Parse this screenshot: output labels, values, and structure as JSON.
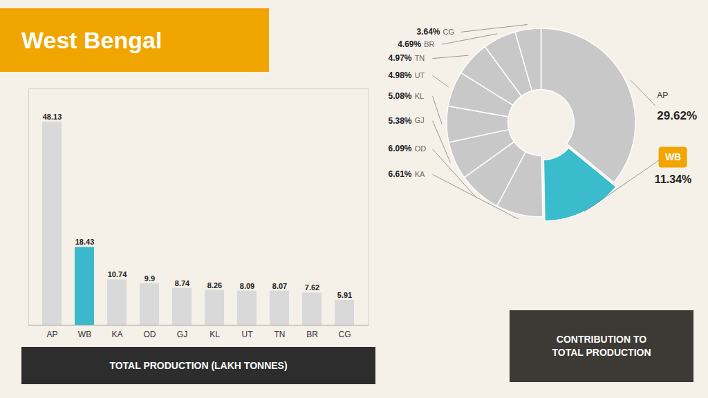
{
  "chart_data": [
    {
      "type": "bar",
      "title": "West Bengal",
      "categories": [
        "AP",
        "WB",
        "KA",
        "OD",
        "GJ",
        "KL",
        "UT",
        "TN",
        "BR",
        "CG"
      ],
      "values": [
        48.13,
        18.43,
        10.74,
        9.9,
        8.74,
        8.26,
        8.09,
        8.07,
        7.62,
        5.91
      ],
      "colors": [
        "#d9d9d9",
        "#3bb8cc",
        "#d9d9d9",
        "#d9d9d9",
        "#d9d9d9",
        "#d9d9d9",
        "#d9d9d9",
        "#d9d9d9",
        "#d9d9d9",
        "#d9d9d9"
      ],
      "xlabel": "TOTAL PRODUCTION (LAKH TONNES)",
      "ylim": [
        0,
        56
      ],
      "data_labels": true,
      "tick_labels": "x"
    },
    {
      "type": "pie",
      "title": "CONTRIBUTION TO\nTOTAL PRODUCTION",
      "categories": [
        "AP",
        "WB",
        "KA",
        "OD",
        "GJ",
        "KL",
        "UT",
        "TN",
        "BR",
        "CG"
      ],
      "values": [
        29.62,
        11.34,
        6.61,
        6.09,
        5.38,
        5.08,
        4.98,
        4.97,
        4.69,
        3.64
      ],
      "value_labels": [
        "29.62%",
        "11.34%",
        "6.61%",
        "6.09%",
        "5.38%",
        "5.08%",
        "4.98%",
        "4.97%",
        "4.69%",
        "3.64%"
      ],
      "colors": [
        "#c8c8c8",
        "#3bbccc",
        "#c8c8c8",
        "#c8c8c8",
        "#c8c8c8",
        "#c8c8c8",
        "#c8c8c8",
        "#c8c8c8",
        "#c8c8c8",
        "#c8c8c8"
      ],
      "data_labels": true
    }
  ]
}
